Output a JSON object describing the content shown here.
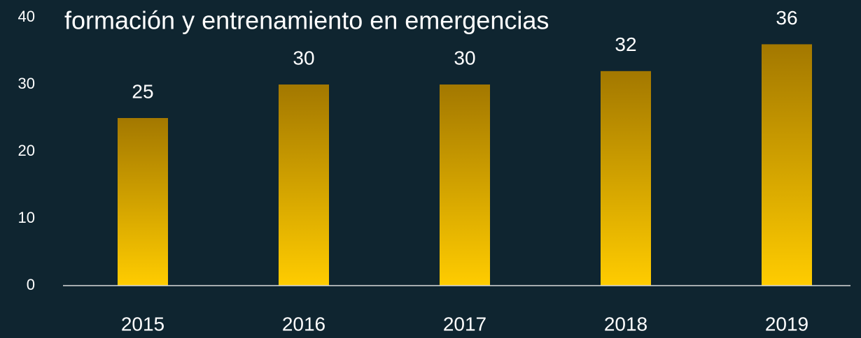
{
  "chart_data": {
    "type": "bar",
    "title": "formación y entrenamiento en emergencias",
    "categories": [
      "2015",
      "2016",
      "2017",
      "2018",
      "2019"
    ],
    "values": [
      25,
      30,
      30,
      32,
      36
    ],
    "gradient_colors": [
      "#a37800",
      "#ffcc00"
    ],
    "ylim": [
      0,
      40
    ],
    "yticks": [
      0,
      10,
      20,
      30,
      40
    ],
    "grid": false
  }
}
